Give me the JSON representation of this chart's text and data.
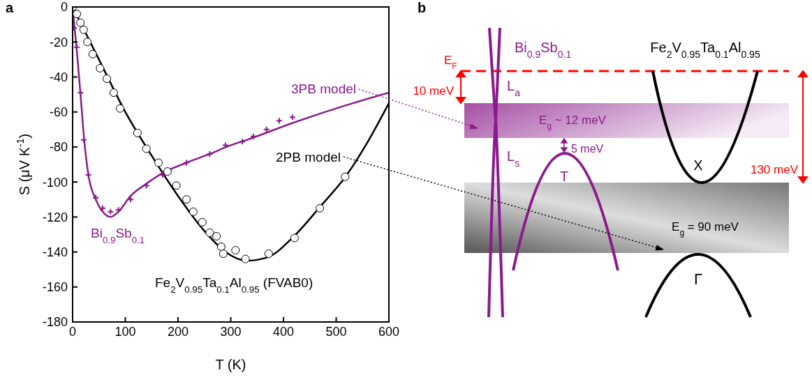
{
  "chart_data": [
    {
      "type": "scatter",
      "title": "a",
      "xlabel": "T (K)",
      "ylabel": "S (μV K$^{-1}$)",
      "xlim": [
        0,
        600
      ],
      "xticks": [
        0,
        100,
        200,
        300,
        400,
        500,
        600
      ],
      "ylim": [
        -180,
        0
      ],
      "yticks": [
        -180,
        -160,
        -140,
        -120,
        -100,
        -80,
        -60,
        -40,
        -20,
        0
      ],
      "grid": false,
      "legend": false,
      "series": [
        {
          "name": "Fe$_{2}$V$_{0.95}$Ta$_{0.1}$Al$_{0.95}$ (FVAB0)",
          "type": "scatter",
          "marker": "circle",
          "color": "#000000",
          "x": [
            0,
            8,
            15,
            21,
            28,
            38,
            52,
            65,
            78,
            90,
            123,
            140,
            163,
            180,
            197,
            216,
            229,
            246,
            260,
            273,
            282,
            286,
            309,
            328,
            372,
            421,
            469,
            517
          ],
          "values": [
            0,
            -4,
            -9,
            -13,
            -20,
            -27,
            -35,
            -41,
            -49,
            -58,
            -72,
            -81,
            -89,
            -94,
            -102,
            -110,
            -117,
            -123,
            -129,
            -131,
            -137,
            -141,
            -139,
            -144,
            -141,
            -132,
            -115,
            -97
          ]
        },
        {
          "name": "2PB model",
          "type": "line",
          "color": "#000000",
          "x": [
            0,
            50,
            100,
            150,
            200,
            250,
            290,
            330,
            370,
            420,
            470,
            520,
            560,
            600
          ],
          "values": [
            0,
            -30,
            -60,
            -85,
            -108,
            -128,
            -140,
            -145,
            -143,
            -131,
            -114,
            -96,
            -77,
            -55
          ]
        },
        {
          "name": "Bi$_{0.9}$Sb$_{0.1}$",
          "type": "scatter",
          "marker": "cross",
          "color": "#8b1a8b",
          "x": [
            3,
            8,
            15,
            21,
            30,
            44,
            57,
            72,
            87,
            110,
            140,
            171,
            216,
            260,
            290,
            322,
            343,
            368,
            392,
            417
          ],
          "values": [
            -12,
            -23,
            -49,
            -76,
            -96,
            -109,
            -115,
            -117,
            -116,
            -110,
            -102,
            -96,
            -89,
            -84,
            -79,
            -77,
            -74,
            -70,
            -65,
            -63
          ]
        },
        {
          "name": "3PB model",
          "type": "line",
          "color": "#8b1a8b",
          "x": [
            0,
            8,
            15,
            22,
            30,
            44,
            57,
            72,
            87,
            110,
            140,
            170,
            216,
            260,
            300,
            330,
            420,
            510,
            600
          ],
          "values": [
            0,
            -25,
            -50,
            -76,
            -96,
            -110,
            -117,
            -120,
            -117,
            -108,
            -101,
            -95,
            -89,
            -84,
            -79,
            -76,
            -66,
            -57,
            -49
          ]
        }
      ]
    },
    {
      "type": "other",
      "title": "b",
      "annotations": [
        "Bi$_{0.9}$Sb$_{0.1}$",
        "Fe$_{2}$V$_{0.95}$Ta$_{0.1}$Al$_{0.95}$",
        "E$_{F}$",
        "10 meV",
        "L$_{a}$",
        "E$_{g}$ ~ 12 meV",
        "5 meV",
        "L$_{s}$",
        "T",
        "X",
        "130 meV",
        "E$_{g}$ = 90 meV",
        "Γ"
      ]
    }
  ]
}
